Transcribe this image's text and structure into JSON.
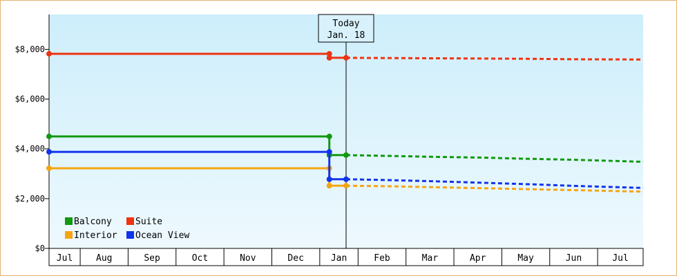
{
  "chart_data": {
    "type": "line",
    "title": "",
    "xlabel": "",
    "ylabel": "",
    "ylim": [
      0,
      9400
    ],
    "y_ticks": [
      0,
      2000,
      4000,
      6000,
      8000
    ],
    "y_tick_labels": [
      "$0",
      "$2,000",
      "$4,000",
      "$6,000",
      "$8,000"
    ],
    "x_month_labels": [
      "Jul",
      "Aug",
      "Sep",
      "Oct",
      "Nov",
      "Dec",
      "Jan",
      "Feb",
      "Mar",
      "Apr",
      "May",
      "Jun",
      "Jul"
    ],
    "x_range": [
      0,
      12.4
    ],
    "today_marker": {
      "x": 6.2,
      "label_line1": "Today",
      "label_line2": "Jan. 18"
    },
    "background_gradient": [
      "#cdeefb",
      "#eef9fe"
    ],
    "legend_position": "bottom-left",
    "series": [
      {
        "name": "Balcony",
        "color": "#119911",
        "history": [
          [
            0,
            4500
          ],
          [
            5.85,
            4500
          ],
          [
            5.85,
            3750
          ],
          [
            6.2,
            3750
          ]
        ],
        "forecast": [
          [
            6.2,
            3750
          ],
          [
            7.0,
            3720
          ],
          [
            8.0,
            3680
          ],
          [
            9.0,
            3650
          ],
          [
            10.0,
            3600
          ],
          [
            11.0,
            3560
          ],
          [
            12.4,
            3480
          ]
        ]
      },
      {
        "name": "Suite",
        "color": "#ee3311",
        "history": [
          [
            0,
            7820
          ],
          [
            5.85,
            7820
          ],
          [
            5.85,
            7660
          ],
          [
            6.2,
            7660
          ]
        ],
        "forecast": [
          [
            6.2,
            7660
          ],
          [
            7.0,
            7650
          ],
          [
            8.0,
            7640
          ],
          [
            9.0,
            7630
          ],
          [
            10.0,
            7620
          ],
          [
            11.0,
            7600
          ],
          [
            12.4,
            7590
          ]
        ]
      },
      {
        "name": "Interior",
        "color": "#f5a511",
        "history": [
          [
            0,
            3220
          ],
          [
            5.85,
            3220
          ],
          [
            5.85,
            2520
          ],
          [
            6.2,
            2520
          ]
        ],
        "forecast": [
          [
            6.2,
            2520
          ],
          [
            7.0,
            2500
          ],
          [
            8.0,
            2460
          ],
          [
            9.0,
            2420
          ],
          [
            10.0,
            2380
          ],
          [
            11.0,
            2340
          ],
          [
            12.4,
            2280
          ]
        ]
      },
      {
        "name": "Ocean View",
        "color": "#1133ee",
        "history": [
          [
            0,
            3880
          ],
          [
            5.85,
            3880
          ],
          [
            5.85,
            2780
          ],
          [
            6.2,
            2780
          ]
        ],
        "forecast": [
          [
            6.2,
            2780
          ],
          [
            7.0,
            2750
          ],
          [
            8.0,
            2700
          ],
          [
            9.0,
            2640
          ],
          [
            10.0,
            2580
          ],
          [
            11.0,
            2510
          ],
          [
            12.4,
            2430
          ]
        ]
      }
    ]
  }
}
